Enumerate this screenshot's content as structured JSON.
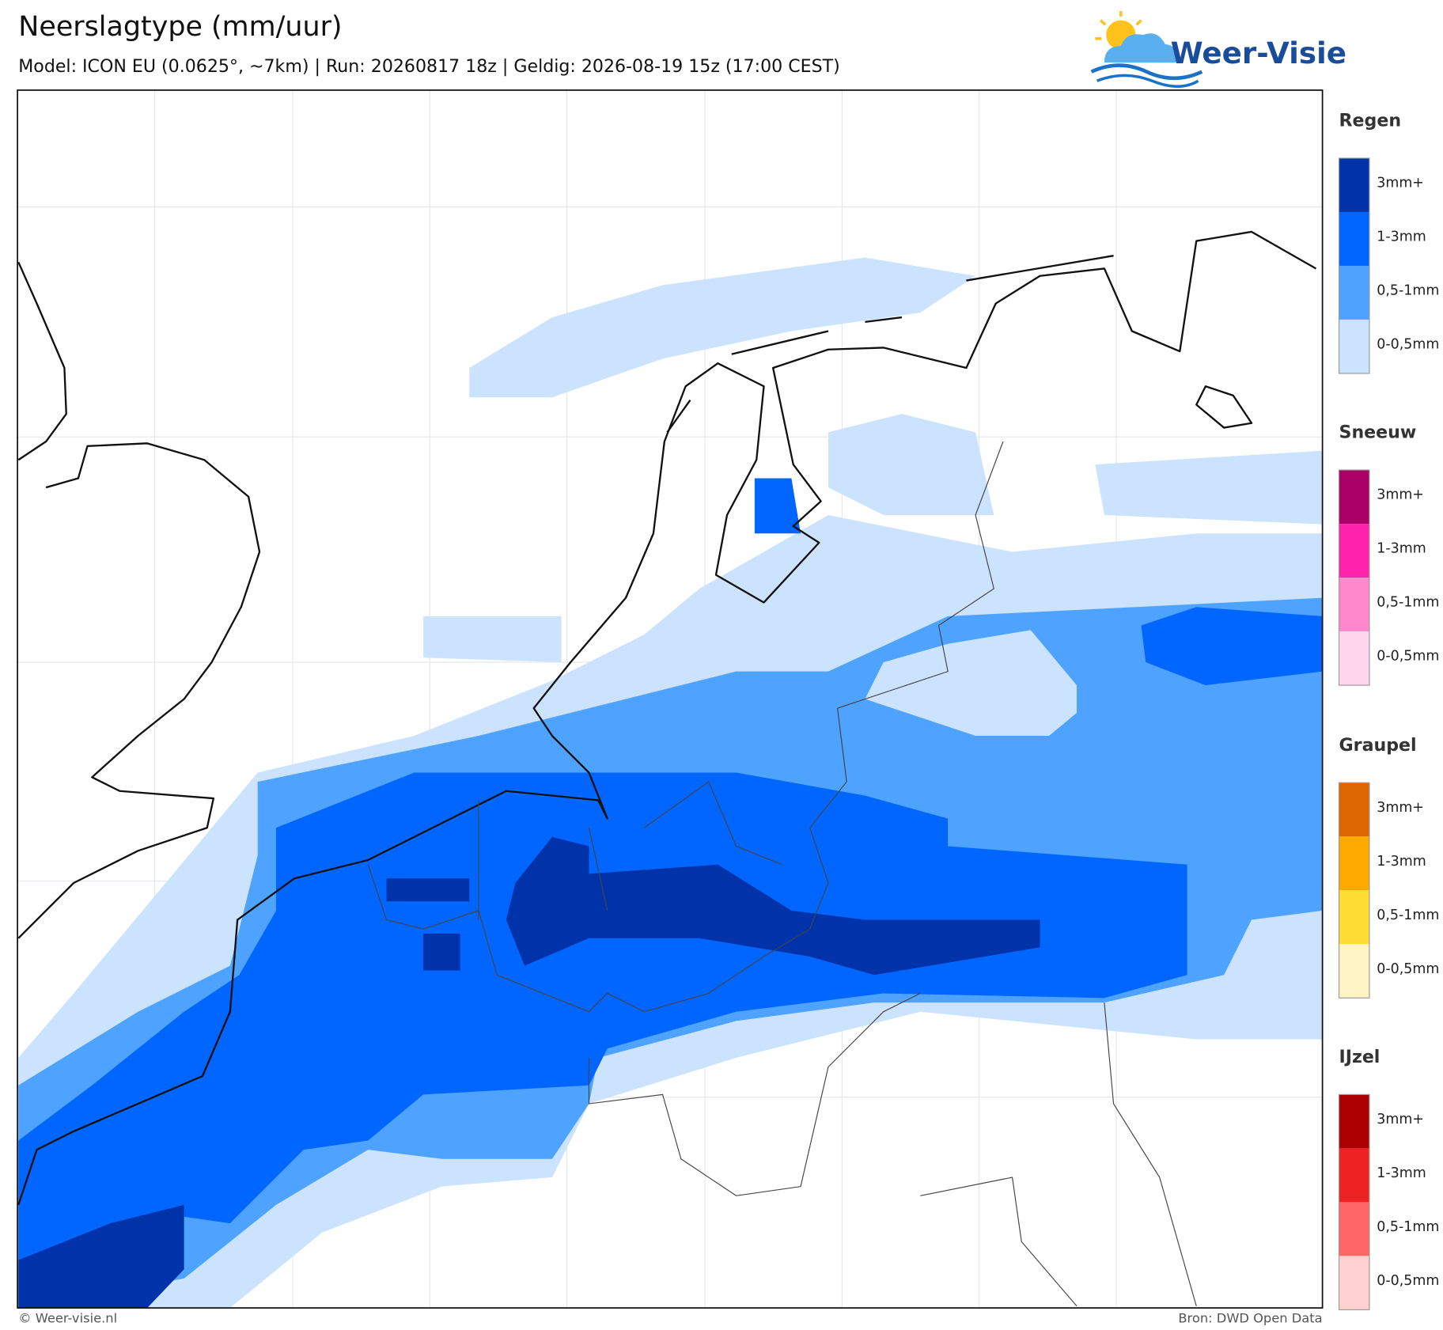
{
  "header": {
    "title": "Neerslagtype (mm/uur)",
    "subtitle": "Model: ICON EU (0.0625°, ~7km)  |  Run: 20260817 18z  |  Geldig: 2026-08-19 15z (17:00 CEST)"
  },
  "logo": {
    "text": "Weer-Visie"
  },
  "legend": {
    "groups": [
      {
        "title": "Regen",
        "levels": [
          {
            "label": "3mm+",
            "color": "#0033aa"
          },
          {
            "label": "1-3mm",
            "color": "#0066ff"
          },
          {
            "label": "0,5-1mm",
            "color": "#4da3ff"
          },
          {
            "label": "0-0,5mm",
            "color": "#cce3ff"
          }
        ]
      },
      {
        "title": "Sneeuw",
        "levels": [
          {
            "label": "3mm+",
            "color": "#aa0066"
          },
          {
            "label": "1-3mm",
            "color": "#ff22aa"
          },
          {
            "label": "0,5-1mm",
            "color": "#ff88cc"
          },
          {
            "label": "0-0,5mm",
            "color": "#ffd6ee"
          }
        ]
      },
      {
        "title": "Graupel",
        "levels": [
          {
            "label": "3mm+",
            "color": "#dd6600"
          },
          {
            "label": "1-3mm",
            "color": "#ffaa00"
          },
          {
            "label": "0,5-1mm",
            "color": "#ffdd33"
          },
          {
            "label": "0-0,5mm",
            "color": "#fff4c4"
          }
        ]
      },
      {
        "title": "IJzel",
        "levels": [
          {
            "label": "3mm+",
            "color": "#aa0000"
          },
          {
            "label": "1-3mm",
            "color": "#ee2222"
          },
          {
            "label": "0,5-1mm",
            "color": "#ff6666"
          },
          {
            "label": "0-0,5mm",
            "color": "#ffd0d0"
          }
        ]
      }
    ]
  },
  "footer": {
    "copyright": "© Weer-visie.nl",
    "source": "Bron: DWD Open Data"
  }
}
